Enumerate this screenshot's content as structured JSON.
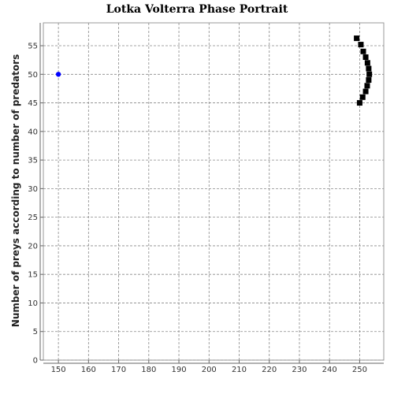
{
  "chart_data": {
    "type": "scatter",
    "title": "Lotka Volterra Phase Portrait",
    "xlabel": "",
    "ylabel": "Number of preys according to number of predators",
    "xlim": [
      145,
      258
    ],
    "ylim": [
      0,
      59
    ],
    "x_ticks": [
      150,
      160,
      170,
      180,
      190,
      200,
      210,
      220,
      230,
      240,
      250
    ],
    "y_ticks": [
      0,
      5,
      10,
      15,
      20,
      25,
      30,
      35,
      40,
      45,
      50,
      55
    ],
    "grid": true,
    "legend": "none",
    "series": [
      {
        "marker": "circle",
        "color": "#0000ff",
        "points": [
          [
            150,
            50
          ]
        ]
      },
      {
        "marker": "square",
        "color": "#000000",
        "points": [
          [
            250,
            45
          ],
          [
            251,
            46
          ],
          [
            252,
            47
          ],
          [
            252.5,
            48
          ],
          [
            253,
            49
          ],
          [
            253.2,
            50
          ],
          [
            253,
            51
          ],
          [
            252.6,
            52
          ],
          [
            252,
            53
          ],
          [
            251.2,
            54
          ],
          [
            250.4,
            55.2
          ],
          [
            249,
            56.3
          ]
        ]
      }
    ]
  }
}
